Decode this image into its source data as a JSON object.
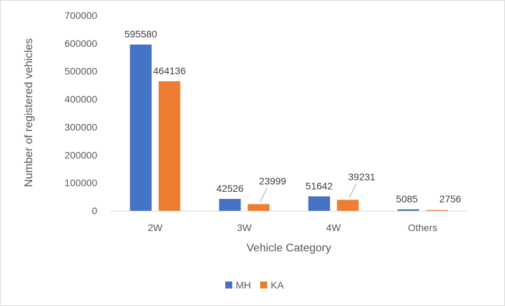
{
  "chart_data": {
    "type": "bar",
    "title": "",
    "xlabel": "Vehicle Category",
    "ylabel": "Number of registered vehicles",
    "categories": [
      "2W",
      "3W",
      "4W",
      "Others"
    ],
    "series": [
      {
        "name": "MH",
        "values": [
          595580,
          42526,
          51642,
          5085
        ],
        "color": "#4472c4"
      },
      {
        "name": "KA",
        "values": [
          464136,
          23999,
          39231,
          2756
        ],
        "color": "#ed7d31"
      }
    ],
    "ylim": [
      0,
      700000
    ],
    "yticks": [
      0,
      100000,
      200000,
      300000,
      400000,
      500000,
      600000,
      700000
    ],
    "data_labels": {
      "MH": [
        "595580",
        "42526",
        "51642",
        "5085"
      ],
      "KA": [
        "464136",
        "23999",
        "39231",
        "2756"
      ]
    },
    "grid": false,
    "legend_position": "bottom"
  }
}
